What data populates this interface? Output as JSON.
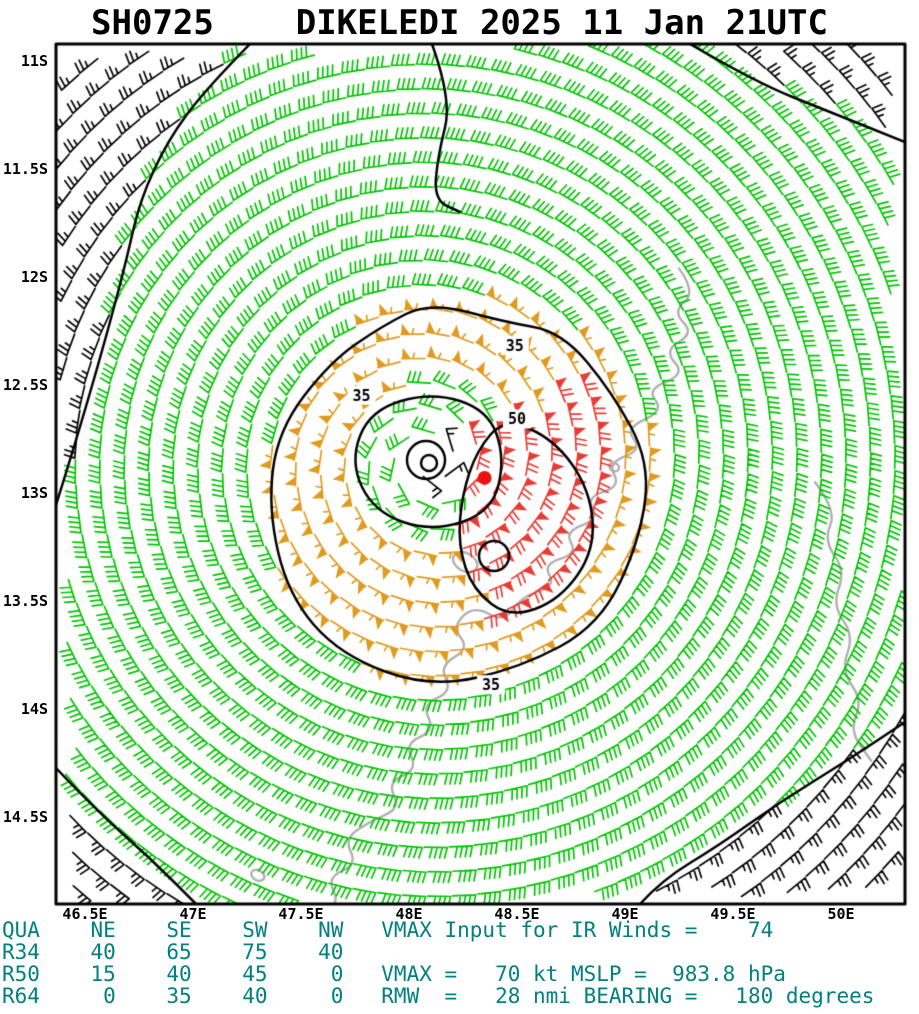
{
  "chart_data": {
    "type": "wind-barb-map",
    "title": "SH0725    DIKELEDI 2025 11 Jan 21UTC",
    "storm": {
      "id": "SH0725",
      "name": "DIKELEDI",
      "valid_time": "2025 11 Jan 21UTC"
    },
    "axes": {
      "lat_ticks": [
        {
          "label": "11S",
          "lat": -11
        },
        {
          "label": "11.5S",
          "lat": -11.5
        },
        {
          "label": "12S",
          "lat": -12
        },
        {
          "label": "12.5S",
          "lat": -12.5
        },
        {
          "label": "13S",
          "lat": -13
        },
        {
          "label": "13.5S",
          "lat": -13.5
        },
        {
          "label": "14S",
          "lat": -14
        },
        {
          "label": "14.5S",
          "lat": -14.5
        }
      ],
      "lon_ticks": [
        {
          "label": "46.5E",
          "lon": 46.5
        },
        {
          "label": "47E",
          "lon": 47
        },
        {
          "label": "47.5E",
          "lon": 47.5
        },
        {
          "label": "48E",
          "lon": 48
        },
        {
          "label": "48.5E",
          "lon": 48.5
        },
        {
          "label": "49E",
          "lon": 49
        },
        {
          "label": "49.5E",
          "lon": 49.5
        },
        {
          "label": "50E",
          "lon": 50
        }
      ],
      "lon_range": [
        46.37,
        50.3
      ],
      "lat_range": [
        -14.9,
        -10.92
      ],
      "grid": false
    },
    "center_marker": {
      "lon": 48.35,
      "lat": -12.93,
      "color": "#ee1111"
    },
    "isotach_contours_kt": [
      35,
      50
    ],
    "contour_labels": [
      {
        "text": "35",
        "lon": 48.49,
        "lat": -12.32
      },
      {
        "text": "35",
        "lon": 47.78,
        "lat": -12.55
      },
      {
        "text": "35",
        "lon": 48.38,
        "lat": -13.89
      },
      {
        "text": "50",
        "lon": 48.5,
        "lat": -12.66
      }
    ],
    "wind_speed_bands_kt": {
      "far_field_black": 25,
      "outer_green": 40,
      "annulus_orange": 55,
      "max_red": 70,
      "inner_green": 30,
      "core_black": 15
    },
    "colors": {
      "green": "#00c400",
      "orange": "#e09a1e",
      "red": "#e73c34",
      "black": "#000000",
      "coast_gray": "#b0b0b0",
      "stats_teal": "#008080",
      "contour_black": "#000000"
    },
    "stats": {
      "quadrant_header": {
        "label": "QUA",
        "cols": [
          "NE",
          "SE",
          "SW",
          "NW"
        ]
      },
      "radii_rows": [
        {
          "label": "R34",
          "values": [
            "40",
            "65",
            "75",
            "40"
          ]
        },
        {
          "label": "R50",
          "values": [
            "15",
            "40",
            "45",
            "0"
          ]
        },
        {
          "label": "R64",
          "values": [
            "0",
            "35",
            "40",
            "0"
          ]
        }
      ],
      "ir_vmax_label": "VMAX Input for IR Winds =",
      "ir_vmax": "74",
      "vmax_label": "VMAX =",
      "vmax": "70 kt",
      "mslp_label": "MSLP =",
      "mslp": "983.8 hPa",
      "rmw_label": "RMW  =",
      "rmw": "28 nmi",
      "bearing_label": "BEARING =",
      "bearing": "180 degrees"
    }
  }
}
